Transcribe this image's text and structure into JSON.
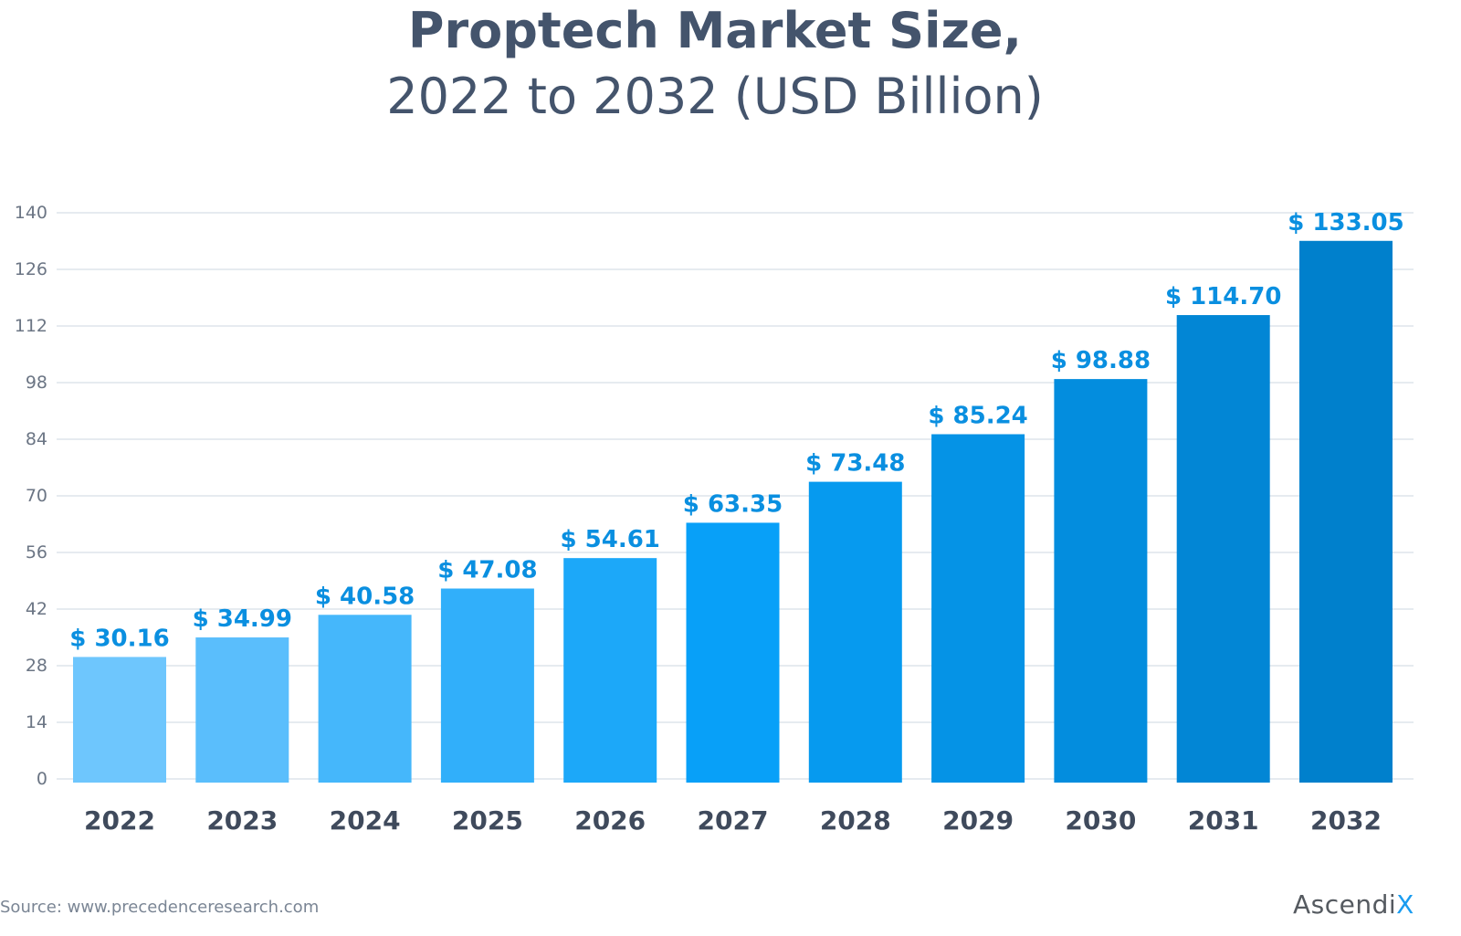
{
  "chart_data": {
    "type": "bar",
    "title": "Proptech Market Size,",
    "subtitle": "2022 to 2032 (USD Billion)",
    "categories": [
      "2022",
      "2023",
      "2024",
      "2025",
      "2026",
      "2027",
      "2028",
      "2029",
      "2030",
      "2031",
      "2032"
    ],
    "values": [
      30.16,
      34.99,
      40.58,
      47.08,
      54.61,
      63.35,
      73.48,
      85.24,
      98.88,
      114.7,
      133.05
    ],
    "data_labels": [
      "$ 30.16",
      "$ 34.99",
      "$ 40.58",
      "$ 47.08",
      "$ 54.61",
      "$ 63.35",
      "$ 73.48",
      "$ 85.24",
      "$ 98.88",
      "$ 114.70",
      "$ 133.05"
    ],
    "yticks": [
      "0",
      "14",
      "28",
      "42",
      "56",
      "70",
      "84",
      "98",
      "112",
      "126",
      "140"
    ],
    "ylim": [
      0,
      140
    ],
    "grid": true,
    "colors": {
      "bar_start": "#6ec6fd",
      "bar_mid": "#08a0f8",
      "bar_end": "#0080cc",
      "label": "#0a8fe0",
      "tick": "#6b7584",
      "category": "#3f4a5c",
      "grid": "#e6ebf0"
    }
  },
  "source": "Source:  www.precedenceresearch.com",
  "logo": {
    "text": "Ascendi",
    "accent": "X"
  }
}
